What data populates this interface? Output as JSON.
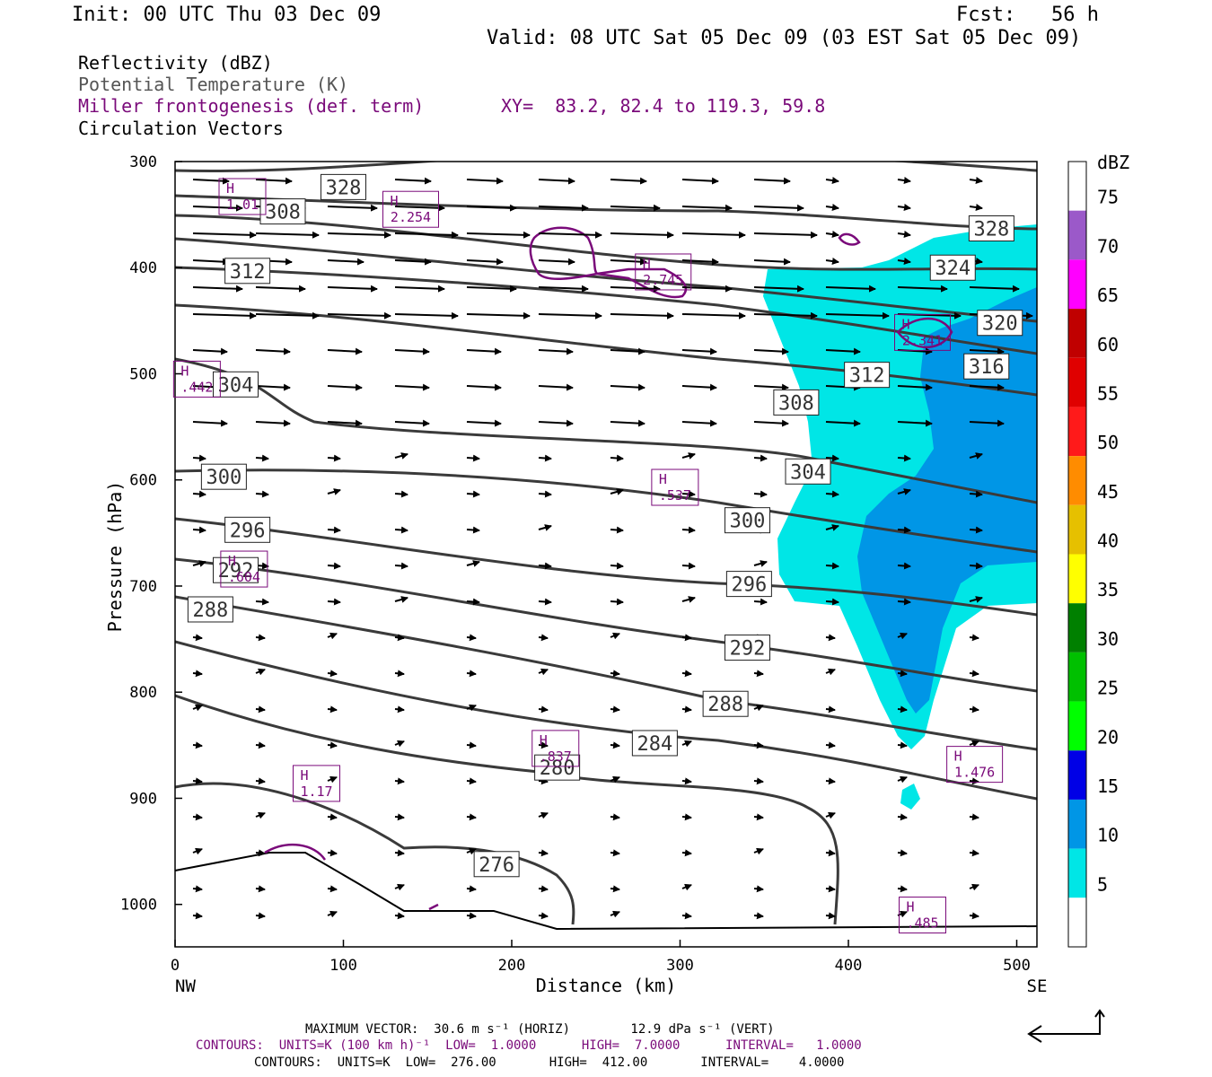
{
  "header": {
    "init": "Init: 00 UTC Thu 03 Dec 09",
    "fcst": "Fcst:   56 h",
    "valid": "Valid: 08 UTC Sat 05 Dec 09 (03 EST Sat 05 Dec 09)",
    "field1": "Reflectivity (dBZ)",
    "field2": "Potential Temperature (K)",
    "field3": "Miller frontogenesis (def. term)",
    "xy": "XY=  83.2, 82.4 to 119.3, 59.8",
    "field4": "Circulation Vectors"
  },
  "footer": {
    "maxvec": "MAXIMUM VECTOR:  30.6 m s⁻¹ (HORIZ)        12.9 dPa s⁻¹ (VERT)",
    "contours1": "CONTOURS:  UNITS=K (100 km h)⁻¹  LOW=  1.0000      HIGH=  7.0000      INTERVAL=   1.0000",
    "contours2": "CONTOURS:  UNITS=K  LOW=  276.00       HIGH=  412.00       INTERVAL=    4.0000"
  },
  "colors": {
    "cyan": "#00e6e6",
    "blue": "#0096e6",
    "purple": "#7a0a7a",
    "theta_line": "#3a3a3a"
  },
  "chart_data": {
    "type": "cross-section",
    "xlabel": "Distance (km)",
    "ylabel": "Pressure (hPa)",
    "xlim": [
      0,
      512
    ],
    "ylim": [
      300,
      1040
    ],
    "x_ticks": [
      0,
      100,
      200,
      300,
      400,
      500
    ],
    "y_ticks": [
      300,
      400,
      500,
      600,
      700,
      800,
      900,
      1000
    ],
    "x_end_labels": {
      "left": "NW",
      "right": "SE"
    },
    "colorbar": {
      "title": "dBZ",
      "levels": [
        75,
        70,
        65,
        60,
        55,
        50,
        45,
        40,
        35,
        30,
        25,
        20,
        15,
        10,
        5
      ],
      "colors": [
        "#ffffff",
        "#9b59c9",
        "#ff00ff",
        "#c00000",
        "#e00000",
        "#ff1a1a",
        "#ff8c00",
        "#e6c000",
        "#ffff00",
        "#008000",
        "#00c000",
        "#00ff00",
        "#0000e6",
        "#0096e6",
        "#00e6e6",
        "#ffffff"
      ]
    },
    "theta_labels": [
      {
        "v": "328",
        "x": 100,
        "p": 324
      },
      {
        "v": "328",
        "x": 485,
        "p": 363
      },
      {
        "v": "324",
        "x": 462,
        "p": 400
      },
      {
        "v": "320",
        "x": 490,
        "p": 452
      },
      {
        "v": "316",
        "x": 482,
        "p": 493
      },
      {
        "v": "312",
        "x": 43,
        "p": 403
      },
      {
        "v": "312",
        "x": 411,
        "p": 501
      },
      {
        "v": "308",
        "x": 64,
        "p": 347
      },
      {
        "v": "308",
        "x": 369,
        "p": 527
      },
      {
        "v": "304",
        "x": 36,
        "p": 510
      },
      {
        "v": "304",
        "x": 376,
        "p": 592
      },
      {
        "v": "300",
        "x": 29,
        "p": 597
      },
      {
        "v": "300",
        "x": 340,
        "p": 638
      },
      {
        "v": "296",
        "x": 43,
        "p": 647
      },
      {
        "v": "296",
        "x": 341,
        "p": 698
      },
      {
        "v": "292",
        "x": 36,
        "p": 685
      },
      {
        "v": "292",
        "x": 340,
        "p": 758
      },
      {
        "v": "288",
        "x": 21,
        "p": 722
      },
      {
        "v": "288",
        "x": 327,
        "p": 811
      },
      {
        "v": "284",
        "x": 285,
        "p": 848
      },
      {
        "v": "280",
        "x": 227,
        "p": 871
      },
      {
        "v": "276",
        "x": 191,
        "p": 962
      }
    ],
    "frontogenesis_maxima": [
      {
        "label": "H",
        "value": "1.01",
        "x": 40,
        "p": 333
      },
      {
        "label": "H",
        "value": "2.254",
        "x": 140,
        "p": 345
      },
      {
        "label": "H",
        "value": "2.745",
        "x": 290,
        "p": 404
      },
      {
        "label": "H",
        "value": "2.341",
        "x": 444,
        "p": 461
      },
      {
        "label": "H",
        "value": ".442",
        "x": 13,
        "p": 505
      },
      {
        "label": "H",
        "value": ".537",
        "x": 297,
        "p": 607
      },
      {
        "label": "H",
        "value": ".604",
        "x": 41,
        "p": 684
      },
      {
        "label": "H",
        "value": ".837",
        "x": 226,
        "p": 853
      },
      {
        "label": "H",
        "value": "1.476",
        "x": 475,
        "p": 868
      },
      {
        "label": "H",
        "value": "1.17",
        "x": 84,
        "p": 886
      },
      {
        "label": "H",
        "value": ".485",
        "x": 444,
        "p": 1010
      }
    ]
  }
}
